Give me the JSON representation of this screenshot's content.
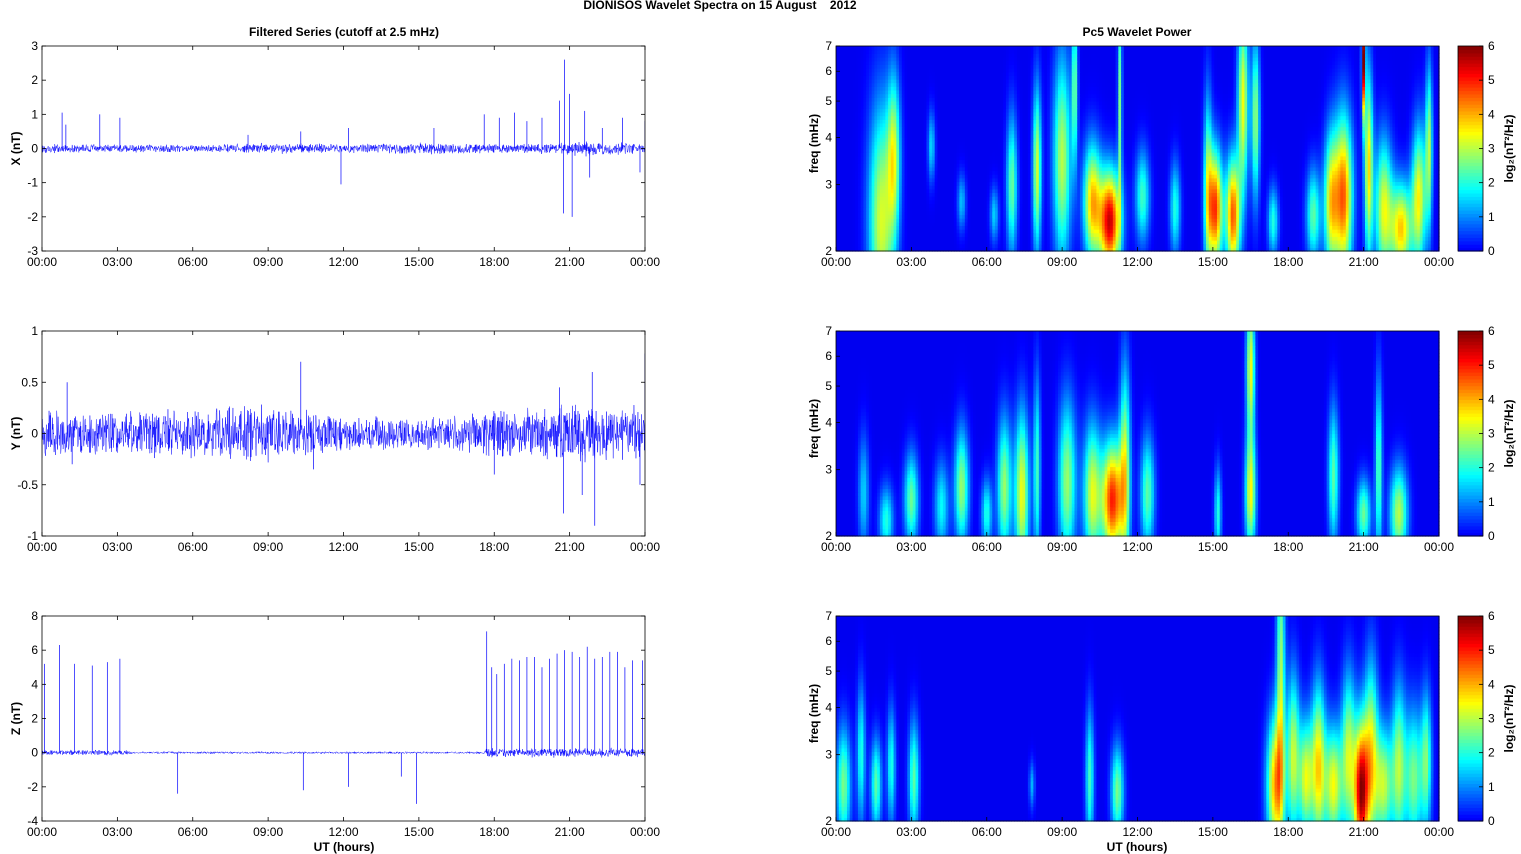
{
  "figure": {
    "title": "DIONISOS Wavelet Spectra on 15 August    2012",
    "left_title": "Filtered Series (cutoff at 2.5 mHz)",
    "right_title": "Pc5 Wavelet Power",
    "xlabel": "UT (hours)"
  },
  "time_ticks": [
    "00:00",
    "03:00",
    "06:00",
    "09:00",
    "12:00",
    "15:00",
    "18:00",
    "21:00",
    "00:00"
  ],
  "chart_data": [
    {
      "type": "line",
      "ylabel": "X (nT)",
      "ylim": [
        -3,
        3
      ],
      "yticks": [
        -3,
        -2,
        -1,
        0,
        1,
        2,
        3
      ],
      "x_range_hours": [
        0,
        24
      ],
      "color": "#0000ff",
      "noise": [
        [
          0,
          0.12
        ],
        [
          6,
          0.1
        ],
        [
          9,
          0.14
        ],
        [
          12,
          0.12
        ],
        [
          15,
          0.16
        ],
        [
          18,
          0.12
        ],
        [
          20,
          0.14
        ],
        [
          21.5,
          0.2
        ],
        [
          24,
          0.14
        ]
      ],
      "spikes": [
        [
          0.8,
          1.05
        ],
        [
          0.95,
          0.7
        ],
        [
          2.3,
          1.0
        ],
        [
          3.1,
          0.9
        ],
        [
          8.2,
          0.4
        ],
        [
          10.3,
          0.5
        ],
        [
          11.9,
          -1.05
        ],
        [
          12.2,
          0.6
        ],
        [
          15.6,
          0.6
        ],
        [
          17.6,
          1.0
        ],
        [
          18.2,
          0.9
        ],
        [
          18.8,
          1.05
        ],
        [
          19.3,
          0.8
        ],
        [
          19.9,
          0.9
        ],
        [
          20.6,
          1.4
        ],
        [
          20.8,
          2.6
        ],
        [
          21.0,
          1.6
        ],
        [
          20.75,
          -1.9
        ],
        [
          21.1,
          -2.0
        ],
        [
          21.6,
          1.1
        ],
        [
          21.8,
          -0.85
        ],
        [
          22.3,
          0.6
        ],
        [
          23.1,
          0.9
        ],
        [
          23.8,
          -0.7
        ],
        [
          24.0,
          0.8
        ]
      ]
    },
    {
      "type": "line",
      "ylabel": "Y (nT)",
      "ylim": [
        -1,
        1
      ],
      "yticks": [
        -1,
        -0.5,
        0,
        0.5,
        1
      ],
      "x_range_hours": [
        0,
        24
      ],
      "color": "#0000ff",
      "noise": [
        [
          0,
          0.22
        ],
        [
          3,
          0.2
        ],
        [
          6,
          0.22
        ],
        [
          9,
          0.24
        ],
        [
          12,
          0.16
        ],
        [
          15,
          0.14
        ],
        [
          18,
          0.2
        ],
        [
          21,
          0.26
        ],
        [
          24,
          0.24
        ]
      ],
      "spikes": [
        [
          1.0,
          0.5
        ],
        [
          1.2,
          -0.3
        ],
        [
          10.3,
          0.7
        ],
        [
          10.8,
          -0.35
        ],
        [
          18.0,
          -0.4
        ],
        [
          20.6,
          0.45
        ],
        [
          20.75,
          -0.78
        ],
        [
          21.5,
          -0.6
        ],
        [
          21.9,
          0.6
        ],
        [
          22.0,
          -0.9
        ],
        [
          23.8,
          -0.5
        ],
        [
          24.0,
          0.78
        ]
      ]
    },
    {
      "type": "line",
      "ylabel": "Z (nT)",
      "xlabel": "UT (hours)",
      "ylim": [
        -4,
        8
      ],
      "yticks": [
        -4,
        -2,
        0,
        2,
        4,
        6,
        8
      ],
      "x_range_hours": [
        0,
        24
      ],
      "color": "#0000ff",
      "noise": [
        [
          0,
          0.15
        ],
        [
          3.3,
          0.14
        ],
        [
          3.6,
          0.06
        ],
        [
          17.5,
          0.06
        ],
        [
          17.7,
          0.25
        ],
        [
          24,
          0.25
        ]
      ],
      "spikes": [
        [
          0.1,
          5.2
        ],
        [
          0.7,
          6.3
        ],
        [
          1.3,
          5.2
        ],
        [
          2.0,
          5.1
        ],
        [
          2.6,
          5.3
        ],
        [
          3.1,
          5.5
        ],
        [
          5.4,
          -2.4
        ],
        [
          10.4,
          -2.2
        ],
        [
          12.2,
          -2.0
        ],
        [
          14.3,
          -1.4
        ],
        [
          14.9,
          -3.0
        ],
        [
          17.7,
          7.1
        ],
        [
          17.9,
          5.0
        ],
        [
          18.1,
          4.6
        ],
        [
          18.4,
          5.2
        ],
        [
          18.7,
          5.5
        ],
        [
          19.0,
          5.4
        ],
        [
          19.3,
          5.6
        ],
        [
          19.6,
          5.6
        ],
        [
          19.9,
          5.0
        ],
        [
          20.2,
          5.5
        ],
        [
          20.5,
          5.8
        ],
        [
          20.8,
          6.0
        ],
        [
          21.1,
          5.9
        ],
        [
          21.4,
          5.6
        ],
        [
          21.7,
          6.2
        ],
        [
          22.0,
          5.5
        ],
        [
          22.3,
          5.6
        ],
        [
          22.6,
          5.9
        ],
        [
          22.9,
          5.9
        ],
        [
          23.2,
          5.0
        ],
        [
          23.5,
          5.4
        ],
        [
          23.9,
          5.4
        ]
      ]
    },
    {
      "type": "heatmap",
      "ylabel": "freq (mHz)",
      "y_scale": "log",
      "ylim": [
        2,
        7
      ],
      "yticks": [
        2,
        3,
        4,
        5,
        6,
        7
      ],
      "x_range_hours": [
        0,
        24
      ],
      "colorbar": {
        "label": "log₂(nT²/Hz)",
        "range": [
          0,
          6
        ],
        "ticks": [
          0,
          1,
          2,
          3,
          4,
          5,
          6
        ],
        "colormap": "jet"
      },
      "blobs": [
        [
          1.8,
          2.4,
          3.2,
          0.35,
          0.5
        ],
        [
          2.3,
          3.6,
          2.8,
          0.18,
          0.35
        ],
        [
          3.8,
          3.8,
          1.6,
          0.1,
          0.15
        ],
        [
          5.0,
          2.7,
          1.4,
          0.12,
          0.12
        ],
        [
          6.3,
          2.5,
          1.5,
          0.12,
          0.12
        ],
        [
          7.0,
          3.0,
          2.5,
          0.15,
          0.3
        ],
        [
          8.0,
          3.3,
          3.2,
          0.12,
          0.35
        ],
        [
          9.0,
          3.5,
          3.0,
          0.25,
          0.45
        ],
        [
          9.5,
          5.5,
          2.5,
          0.08,
          0.35
        ],
        [
          10.2,
          2.7,
          3.8,
          0.25,
          0.25
        ],
        [
          10.9,
          2.4,
          5.5,
          0.3,
          0.22
        ],
        [
          11.3,
          5.0,
          2.6,
          0.06,
          0.5
        ],
        [
          12.2,
          2.8,
          2.2,
          0.2,
          0.2
        ],
        [
          13.5,
          2.6,
          2.0,
          0.15,
          0.2
        ],
        [
          14.8,
          3.0,
          2.5,
          0.12,
          0.4
        ],
        [
          15.1,
          2.6,
          4.8,
          0.2,
          0.25
        ],
        [
          15.8,
          2.5,
          4.6,
          0.2,
          0.25
        ],
        [
          16.2,
          5.0,
          3.4,
          0.15,
          0.4
        ],
        [
          16.7,
          4.5,
          2.8,
          0.12,
          0.35
        ],
        [
          17.4,
          2.4,
          2.0,
          0.15,
          0.15
        ],
        [
          19.0,
          2.5,
          2.4,
          0.2,
          0.2
        ],
        [
          19.7,
          2.7,
          3.4,
          0.2,
          0.3
        ],
        [
          20.2,
          2.8,
          4.5,
          0.25,
          0.35
        ],
        [
          21.0,
          6.5,
          5.8,
          0.05,
          0.25
        ],
        [
          21.2,
          3.4,
          3.6,
          0.12,
          0.4
        ],
        [
          21.8,
          2.6,
          3.2,
          0.25,
          0.3
        ],
        [
          22.5,
          2.3,
          3.8,
          0.3,
          0.2
        ],
        [
          23.2,
          2.8,
          3.4,
          0.2,
          0.3
        ],
        [
          23.6,
          3.8,
          2.8,
          0.1,
          0.35
        ]
      ]
    },
    {
      "type": "heatmap",
      "ylabel": "freq (mHz)",
      "y_scale": "log",
      "ylim": [
        2,
        7
      ],
      "yticks": [
        2,
        3,
        4,
        5,
        6,
        7
      ],
      "x_range_hours": [
        0,
        24
      ],
      "colorbar": {
        "label": "log₂(nT²/Hz)",
        "range": [
          0,
          6
        ],
        "ticks": [
          0,
          1,
          2,
          3,
          4,
          5,
          6
        ],
        "colormap": "jet"
      },
      "blobs": [
        [
          1.1,
          2.6,
          1.5,
          0.15,
          0.25
        ],
        [
          2.0,
          2.2,
          2.0,
          0.2,
          0.15
        ],
        [
          3.0,
          2.5,
          2.5,
          0.2,
          0.2
        ],
        [
          4.2,
          2.4,
          1.8,
          0.2,
          0.2
        ],
        [
          5.0,
          2.7,
          2.8,
          0.2,
          0.25
        ],
        [
          6.0,
          2.3,
          2.0,
          0.15,
          0.15
        ],
        [
          6.7,
          2.7,
          2.8,
          0.2,
          0.3
        ],
        [
          7.4,
          2.6,
          3.4,
          0.2,
          0.35
        ],
        [
          8.0,
          3.0,
          2.2,
          0.1,
          0.4
        ],
        [
          9.2,
          2.8,
          2.8,
          0.25,
          0.35
        ],
        [
          10.2,
          2.6,
          3.2,
          0.25,
          0.3
        ],
        [
          11.0,
          2.5,
          5.0,
          0.3,
          0.25
        ],
        [
          11.5,
          3.0,
          3.0,
          0.15,
          0.45
        ],
        [
          12.4,
          2.6,
          2.4,
          0.2,
          0.25
        ],
        [
          15.2,
          2.3,
          2.0,
          0.1,
          0.2
        ],
        [
          16.5,
          2.6,
          3.4,
          0.15,
          0.25
        ],
        [
          16.5,
          5.6,
          3.4,
          0.12,
          0.3
        ],
        [
          19.8,
          2.9,
          2.4,
          0.15,
          0.3
        ],
        [
          21.0,
          2.3,
          2.5,
          0.2,
          0.15
        ],
        [
          21.6,
          3.0,
          2.4,
          0.1,
          0.4
        ],
        [
          22.4,
          2.3,
          3.0,
          0.25,
          0.2
        ]
      ]
    },
    {
      "type": "heatmap",
      "ylabel": "freq (mHz)",
      "y_scale": "log",
      "ylim": [
        2,
        7
      ],
      "yticks": [
        2,
        3,
        4,
        5,
        6,
        7
      ],
      "x_range_hours": [
        0,
        24
      ],
      "colorbar": {
        "label": "log₂(nT²/Hz)",
        "range": [
          0,
          6
        ],
        "ticks": [
          0,
          1,
          2,
          3,
          4,
          5,
          6
        ],
        "colormap": "jet"
      },
      "blobs": [
        [
          0.3,
          2.5,
          2.6,
          0.2,
          0.25
        ],
        [
          1.0,
          3.0,
          2.0,
          0.12,
          0.3
        ],
        [
          1.6,
          2.5,
          2.4,
          0.15,
          0.2
        ],
        [
          2.2,
          2.8,
          2.0,
          0.12,
          0.25
        ],
        [
          3.1,
          2.6,
          2.4,
          0.15,
          0.25
        ],
        [
          7.8,
          2.5,
          1.3,
          0.08,
          0.1
        ],
        [
          10.1,
          2.6,
          2.2,
          0.12,
          0.3
        ],
        [
          11.2,
          2.4,
          2.6,
          0.18,
          0.2
        ],
        [
          17.5,
          2.5,
          4.0,
          0.25,
          0.3
        ],
        [
          17.7,
          5.0,
          2.8,
          0.12,
          0.6
        ],
        [
          18.2,
          3.0,
          3.0,
          0.18,
          0.35
        ],
        [
          18.7,
          2.6,
          3.2,
          0.2,
          0.25
        ],
        [
          19.2,
          2.8,
          3.6,
          0.2,
          0.35
        ],
        [
          19.8,
          2.5,
          3.4,
          0.25,
          0.25
        ],
        [
          20.4,
          3.0,
          3.0,
          0.2,
          0.35
        ],
        [
          20.9,
          2.4,
          5.6,
          0.2,
          0.3
        ],
        [
          21.3,
          3.0,
          3.2,
          0.2,
          0.4
        ],
        [
          21.8,
          2.5,
          3.0,
          0.25,
          0.25
        ],
        [
          22.4,
          2.8,
          2.8,
          0.2,
          0.35
        ],
        [
          23.0,
          2.6,
          2.6,
          0.25,
          0.3
        ],
        [
          23.5,
          2.9,
          2.4,
          0.15,
          0.3
        ]
      ]
    }
  ]
}
